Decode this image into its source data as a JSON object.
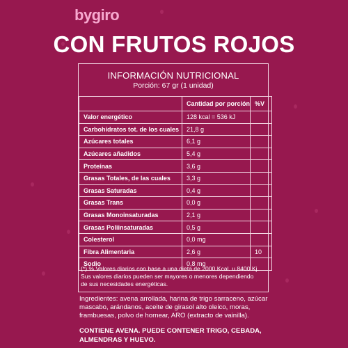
{
  "brand": "bygiro",
  "title": "CON FRUTOS ROJOS",
  "nutrition": {
    "heading": "INFORMACIÓN NUTRICIONAL",
    "portion": "Porción: 67 gr (1 unidad)",
    "col_amount": "Cantidad por porción",
    "col_pct": "%V",
    "rows": [
      {
        "label": "Valor energético",
        "amount": "128 kcal = 536 kJ",
        "pct": ""
      },
      {
        "label": "Carbohidratos tot. de los cuales",
        "amount": "21,8 g",
        "pct": ""
      },
      {
        "label": "Azúcares totales",
        "amount": "6,1 g",
        "pct": ""
      },
      {
        "label": "Azúcares añadidos",
        "amount": "5,4 g",
        "pct": ""
      },
      {
        "label": "Proteínas",
        "amount": "3,6 g",
        "pct": ""
      },
      {
        "label": "Grasas Totales, de las cuales",
        "amount": "3,3 g",
        "pct": ""
      },
      {
        "label": "Grasas Saturadas",
        "amount": "0,4 g",
        "pct": ""
      },
      {
        "label": "Grasas Trans",
        "amount": "0,0 g",
        "pct": ""
      },
      {
        "label": "Grasas Monoinsaturadas",
        "amount": "2,1 g",
        "pct": ""
      },
      {
        "label": "Grasas Poliinsaturadas",
        "amount": "0,5 g",
        "pct": ""
      },
      {
        "label": "Colesterol",
        "amount": "0,0 mg",
        "pct": ""
      },
      {
        "label": "Fibra Alimentaria",
        "amount": "2,6 g",
        "pct": "10"
      },
      {
        "label": "Sodio",
        "amount": "0,8 mg",
        "pct": ""
      }
    ],
    "footnote_line1": "(*) % Valores diarios con base a una dieta de 2000 Kcal. u 8400 Kj.",
    "footnote_line2": "Sus valores diarios pueden ser mayores o menores dependiendo",
    "footnote_line3": "de sus necesidades energéticas."
  },
  "ingredients": {
    "line1": "Ingredientes: avena arrollada, harina de trigo sarraceno, azúcar",
    "line2": "mascabo, arándanos, aceite de girasol alto oleico, moras,",
    "line3": "frambuesas, polvo de hornear, ARO (extracto de vainilla)."
  },
  "allergens": {
    "line1": "CONTIENE AVENA. PUEDE CONTENER TRIGO, CEBADA,",
    "line2": "ALMENDRAS Y HUEVO."
  },
  "colors": {
    "background": "#97184f",
    "brand": "#f7a8cf",
    "text": "#ffffff",
    "border": "#f3d8e4"
  }
}
